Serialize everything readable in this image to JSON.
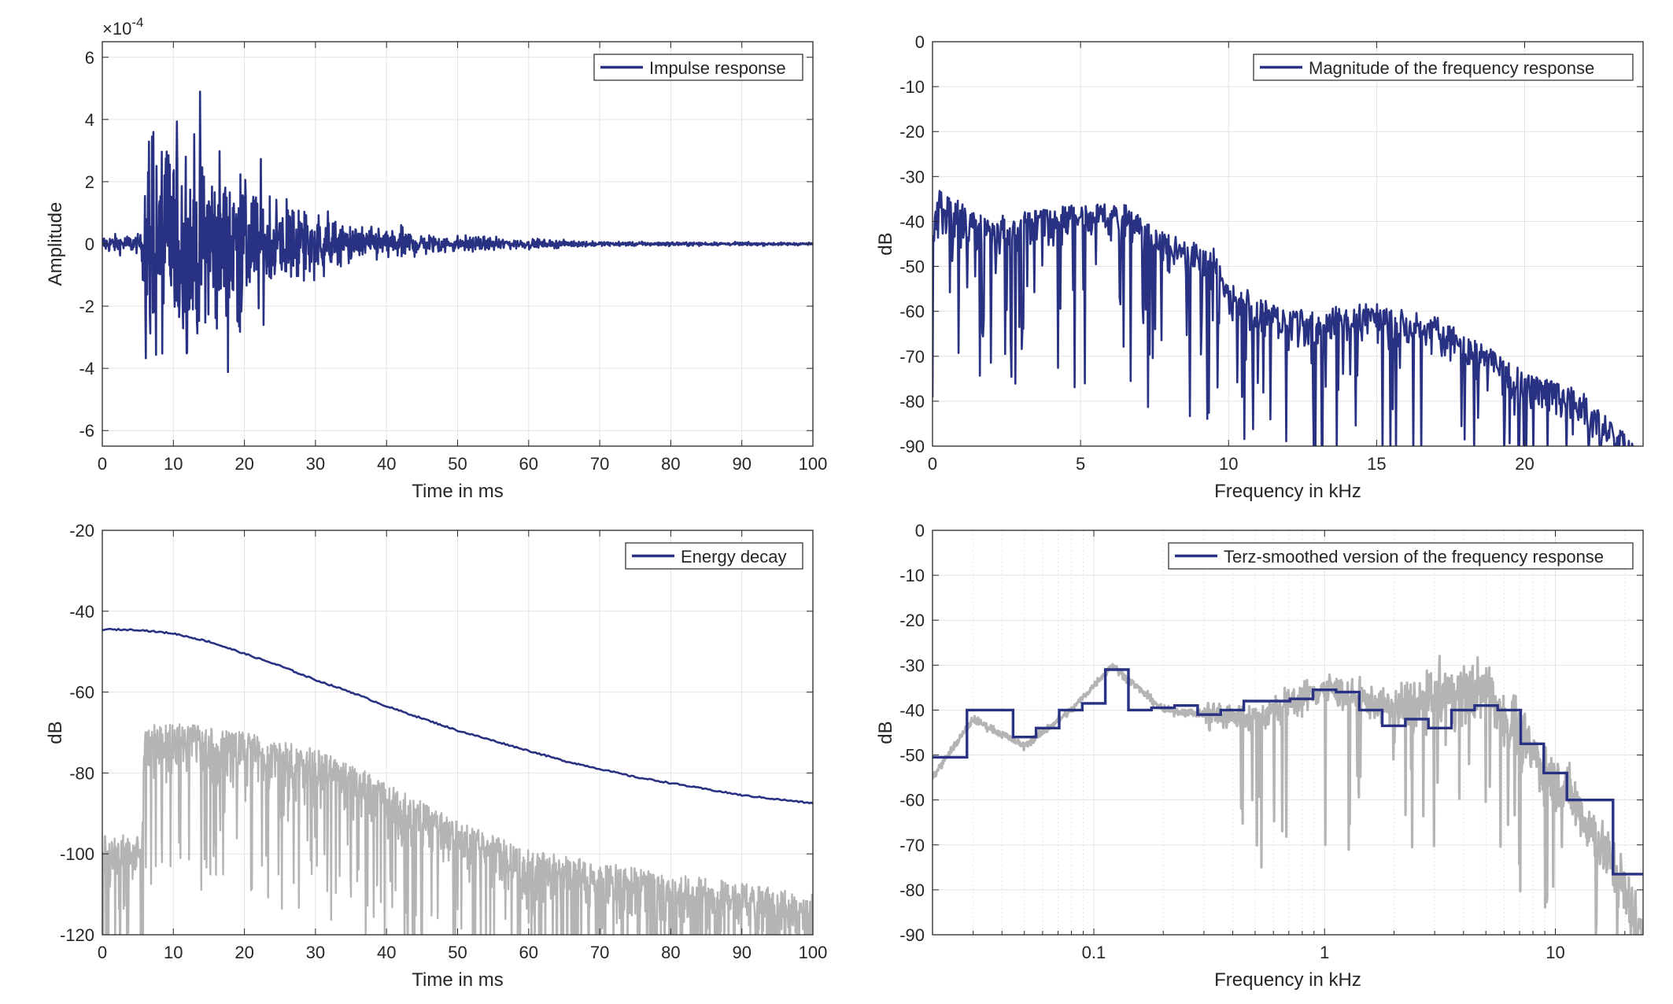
{
  "colors": {
    "primary_line": "#283182",
    "secondary_line": "#b4b4b4",
    "grid": "#e3e3e3",
    "axes": "#262626",
    "background": "#ffffff"
  },
  "chart_data": [
    {
      "id": "impulse",
      "type": "line",
      "xlabel": "Time in ms",
      "ylabel": "Amplitude",
      "exponent_label": "×10",
      "exponent_power": "-4",
      "xlim": [
        0,
        100
      ],
      "ylim": [
        -6.5,
        6.5
      ],
      "xticks": [
        0,
        10,
        20,
        30,
        40,
        50,
        60,
        70,
        80,
        90,
        100
      ],
      "xtick_labels": [
        "0",
        "10",
        "20",
        "30",
        "40",
        "50",
        "60",
        "70",
        "80",
        "90",
        "100"
      ],
      "yticks": [
        -6,
        -4,
        -2,
        0,
        2,
        4,
        6
      ],
      "ytick_labels": [
        "-6",
        "-4",
        "-2",
        "0",
        "2",
        "4",
        "6"
      ],
      "grid": true,
      "legend": "top-right",
      "series": [
        {
          "name": "Impulse response",
          "color": "#283182",
          "description_envelope": {
            "x": [
              0,
              5.5,
              6,
              10,
              12,
              15,
              20,
              25,
              30,
              35,
              40,
              50,
              60,
              70,
              80,
              100
            ],
            "amplitude_max": [
              0.4,
              0.4,
              5.7,
              4.7,
              4.8,
              4.6,
              3.5,
              2.2,
              1.5,
              0.8,
              0.7,
              0.35,
              0.2,
              0.1,
              0.08,
              0.06
            ]
          }
        }
      ]
    },
    {
      "id": "magnitude",
      "type": "line",
      "xlabel": "Frequency in kHz",
      "ylabel": "dB",
      "xlim": [
        0,
        24
      ],
      "ylim": [
        -90,
        0
      ],
      "xticks": [
        0,
        5,
        10,
        15,
        20
      ],
      "xtick_labels": [
        "0",
        "5",
        "10",
        "15",
        "20"
      ],
      "yticks": [
        -90,
        -80,
        -70,
        -60,
        -50,
        -40,
        -30,
        -20,
        -10,
        0
      ],
      "ytick_labels": [
        "-90",
        "-80",
        "-70",
        "-60",
        "-50",
        "-40",
        "-30",
        "-20",
        "-10",
        "0"
      ],
      "grid": true,
      "legend": "top-right",
      "series": [
        {
          "name": "Magnitude of the frequency response",
          "color": "#283182",
          "description_envelope": {
            "x": [
              0,
              0.2,
              2,
              5,
              6.5,
              8,
              9.5,
              10,
              12,
              15,
              16,
              17,
              18,
              20,
              22,
              23.5,
              24
            ],
            "top_db": [
              -40,
              -30,
              -36,
              -33,
              -33,
              -40,
              -43,
              -50,
              -57,
              -55,
              -57,
              -58,
              -62,
              -70,
              -75,
              -85,
              -90
            ]
          }
        }
      ]
    },
    {
      "id": "energy",
      "type": "line",
      "xlabel": "Time in ms",
      "ylabel": "dB",
      "xlim": [
        0,
        100
      ],
      "ylim": [
        -120,
        -20
      ],
      "xticks": [
        0,
        10,
        20,
        30,
        40,
        50,
        60,
        70,
        80,
        90,
        100
      ],
      "xtick_labels": [
        "0",
        "10",
        "20",
        "30",
        "40",
        "50",
        "60",
        "70",
        "80",
        "90",
        "100"
      ],
      "yticks": [
        -120,
        -100,
        -80,
        -60,
        -40,
        -20
      ],
      "ytick_labels": [
        "-120",
        "-100",
        "-80",
        "-60",
        "-40",
        "-20"
      ],
      "grid": true,
      "legend": "top-right",
      "series": [
        {
          "name": "Energy decay",
          "color": "#283182",
          "x": [
            0,
            5,
            10,
            15,
            20,
            25,
            30,
            35,
            40,
            45,
            50,
            55,
            60,
            65,
            70,
            75,
            80,
            85,
            90,
            95,
            100
          ],
          "y": [
            -44.5,
            -44.6,
            -45.5,
            -47.5,
            -50.5,
            -53.5,
            -57,
            -60,
            -63.5,
            -66.5,
            -69.5,
            -72,
            -74.5,
            -77,
            -79,
            -81,
            -82.5,
            -84,
            -85.5,
            -86.5,
            -87.5
          ]
        },
        {
          "name": "",
          "color": "#b4b4b4",
          "description_envelope": {
            "x": [
              0,
              5.5,
              6,
              10,
              20,
              30,
              40,
              50,
              60,
              70,
              80,
              90,
              100
            ],
            "top_db": [
              -93,
              -93,
              -66,
              -65,
              -68,
              -72,
              -80,
              -90,
              -97,
              -100,
              -103,
              -105,
              -108
            ]
          }
        }
      ]
    },
    {
      "id": "terz",
      "type": "line",
      "xscale": "log",
      "xlabel": "Frequency in kHz",
      "ylabel": "dB",
      "xlim": [
        0.02,
        24
      ],
      "ylim": [
        -90,
        0
      ],
      "xticks": [
        0.1,
        1,
        10
      ],
      "xtick_labels": [
        "0.1",
        "1",
        "10"
      ],
      "yticks": [
        -90,
        -80,
        -70,
        -60,
        -50,
        -40,
        -30,
        -20,
        -10,
        0
      ],
      "ytick_labels": [
        "-90",
        "-80",
        "-70",
        "-60",
        "-50",
        "-40",
        "-30",
        "-20",
        "-10",
        "0"
      ],
      "grid": true,
      "legend": "top-right",
      "series": [
        {
          "name": "Terz-smoothed version of the frequency response",
          "color": "#283182",
          "band_edges_khz": [
            0.02,
            0.0282,
            0.0447,
            0.0562,
            0.0708,
            0.0891,
            0.1122,
            0.1413,
            0.1778,
            0.2239,
            0.2818,
            0.3548,
            0.4467,
            0.5623,
            0.7079,
            0.8913,
            1.122,
            1.413,
            1.778,
            2.239,
            2.818,
            3.548,
            4.467,
            5.623,
            7.079,
            8.913,
            11.22,
            17.78,
            24
          ],
          "band_levels_db": [
            -50.5,
            -40,
            -46,
            -44,
            -40,
            -38.5,
            -31,
            -40,
            -39.5,
            -39,
            -41,
            -40,
            -38,
            -38,
            -37.5,
            -35.5,
            -36,
            -40,
            -43.5,
            -42,
            -44,
            -40,
            -39,
            -40,
            -47.5,
            -54,
            -60,
            -76.5
          ]
        },
        {
          "name": "",
          "color": "#b4b4b4",
          "description_envelope": {
            "x": [
              0.02,
              0.03,
              0.05,
              0.08,
              0.12,
              0.2,
              0.5,
              1,
              2,
              5,
              8,
              12,
              18,
              24
            ],
            "level_db": [
              -55,
              -42,
              -48,
              -40,
              -30,
              -40,
              -42,
              -35,
              -40,
              -35,
              -50,
              -60,
              -75,
              -90
            ]
          }
        }
      ]
    }
  ]
}
